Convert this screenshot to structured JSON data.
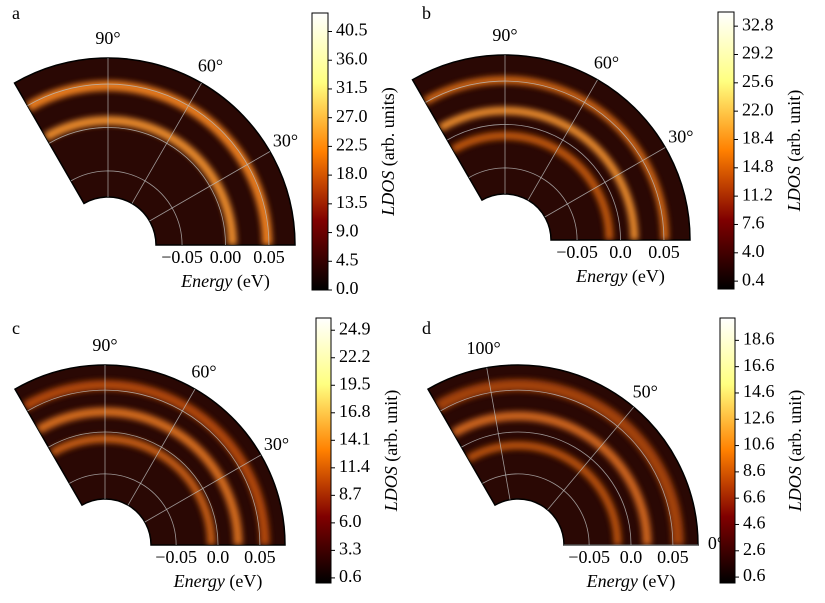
{
  "chart_data": [
    {
      "type": "polar_heatmap",
      "panel_label": "a",
      "thetalim": [
        0,
        120
      ],
      "thetaticks": [
        {
          "value": 90,
          "label": "90°"
        },
        {
          "value": 60,
          "label": "60°"
        },
        {
          "value": 30,
          "label": "30°"
        }
      ],
      "rlim": [
        -0.08,
        0.08
      ],
      "rticks": [
        {
          "value": -0.05,
          "label": "−0.05"
        },
        {
          "value": 0,
          "label": "0.00"
        },
        0.05
      ],
      "xlabel_var": "Energy",
      "xlabel_unit": "(eV)",
      "colorbar_label_var": "LDOS",
      "colorbar_label_unit": "(arb. units)",
      "clim": [
        0,
        43.4
      ],
      "colormap": "afmhot",
      "grid": true,
      "cticks": [
        {
          "value": 0,
          "label": "0.0"
        },
        4.5,
        {
          "value": 9,
          "label": "9.0"
        },
        13.5,
        {
          "value": 18,
          "label": "18.0"
        },
        22.5,
        {
          "value": 27,
          "label": "27.0"
        },
        31.5,
        {
          "value": 36,
          "label": "36.0"
        },
        40.5
      ]
    },
    {
      "type": "polar_heatmap",
      "panel_label": "b",
      "thetalim": [
        0,
        120
      ],
      "thetaticks": [
        {
          "value": 90,
          "label": "90°"
        },
        {
          "value": 60,
          "label": "60°"
        },
        {
          "value": 30,
          "label": "30°"
        }
      ],
      "rlim": [
        -0.08,
        0.08
      ],
      "rticks": [
        {
          "value": -0.05,
          "label": "−0.05"
        },
        {
          "value": 0,
          "label": "0.0"
        },
        0.05
      ],
      "xlabel_var": "Energy",
      "xlabel_unit": "(eV)",
      "colorbar_label_var": "LDOS",
      "colorbar_label_unit": "(arb. unit)",
      "clim": [
        -0.6,
        34.6
      ],
      "colormap": "afmhot",
      "grid": true,
      "cticks": [
        0.4,
        {
          "value": 4,
          "label": "4.0"
        },
        7.6,
        11.2,
        14.8,
        18.4,
        {
          "value": 22,
          "label": "22.0"
        },
        25.6,
        29.2,
        32.8
      ]
    },
    {
      "type": "polar_heatmap",
      "panel_label": "c",
      "thetalim": [
        0,
        120
      ],
      "thetaticks": [
        {
          "value": 90,
          "label": "90°"
        },
        {
          "value": 60,
          "label": "60°"
        },
        {
          "value": 30,
          "label": "30°"
        }
      ],
      "rlim": [
        -0.08,
        0.08
      ],
      "rticks": [
        {
          "value": -0.05,
          "label": "−0.05"
        },
        {
          "value": 0,
          "label": "0.0"
        },
        0.05
      ],
      "xlabel_var": "Energy",
      "xlabel_unit": "(eV)",
      "colorbar_label_var": "LDOS",
      "colorbar_label_unit": "(arb. unit)",
      "clim": [
        0.1,
        26.1
      ],
      "colormap": "afmhot",
      "grid": true,
      "cticks": [
        0.6,
        3.3,
        {
          "value": 6,
          "label": "6.0"
        },
        8.7,
        11.4,
        14.1,
        16.8,
        19.5,
        22.2,
        24.9
      ]
    },
    {
      "type": "polar_heatmap",
      "panel_label": "d",
      "thetalim": [
        0,
        120
      ],
      "thetaticks": [
        {
          "value": 100,
          "label": "100°"
        },
        {
          "value": 50,
          "label": "50°"
        },
        {
          "value": 0,
          "label": "0°"
        }
      ],
      "rlim": [
        -0.08,
        0.08
      ],
      "rticks": [
        {
          "value": -0.05,
          "label": "−0.05"
        },
        {
          "value": 0,
          "label": "0.0"
        },
        0.05
      ],
      "xlabel_var": "Energy",
      "xlabel_unit": "(eV)",
      "colorbar_label_var": "LDOS",
      "colorbar_label_unit": "(arb. unit)",
      "clim": [
        0.15,
        20.3
      ],
      "colormap": "afmhot",
      "grid": true,
      "cticks": [
        0.6,
        2.6,
        4.6,
        6.6,
        8.6,
        10.6,
        12.6,
        14.6,
        16.6,
        18.6
      ]
    }
  ]
}
